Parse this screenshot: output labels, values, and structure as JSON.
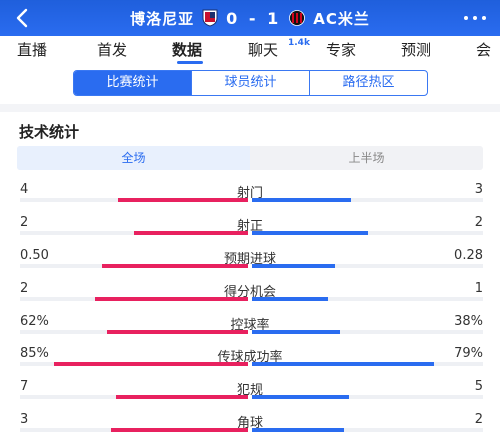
{
  "header": {
    "back_icon": "back-arrow-icon",
    "home_team": "博洛尼亚",
    "away_team": "AC米兰",
    "score": "0 - 1",
    "home_crest_icon": "bologna-crest-icon",
    "away_crest_icon": "ac-milan-crest-icon",
    "more_icon": "more-dots-icon",
    "colors": {
      "header_bg": "#2a6cf0",
      "home_bar": "#e8215f",
      "away_bar": "#2a6cf0"
    }
  },
  "tabs": [
    {
      "label": "直播"
    },
    {
      "label": "首发"
    },
    {
      "label": "数据",
      "active": true
    },
    {
      "label": "聊天",
      "badge": "1.4k"
    },
    {
      "label": "专家"
    },
    {
      "label": "预测"
    },
    {
      "label": "会"
    }
  ],
  "subnav": {
    "segments": [
      "比赛统计",
      "球员统计",
      "路径热区"
    ],
    "active_index": 0
  },
  "section": {
    "title": "技术统计",
    "periods": [
      "全场",
      "上半场"
    ],
    "active_period": 0
  },
  "stats": [
    {
      "name": "射门",
      "home": "4",
      "away": "3",
      "home_frac": 0.57,
      "away_frac": 0.43
    },
    {
      "name": "射正",
      "home": "2",
      "away": "2",
      "home_frac": 0.5,
      "away_frac": 0.5
    },
    {
      "name": "预期进球",
      "home": "0.50",
      "away": "0.28",
      "home_frac": 0.64,
      "away_frac": 0.36
    },
    {
      "name": "得分机会",
      "home": "2",
      "away": "1",
      "home_frac": 0.67,
      "away_frac": 0.33
    },
    {
      "name": "控球率",
      "home": "62%",
      "away": "38%",
      "home_frac": 0.62,
      "away_frac": 0.38
    },
    {
      "name": "传球成功率",
      "home": "85%",
      "away": "79%",
      "home_frac": 0.85,
      "away_frac": 0.79
    },
    {
      "name": "犯规",
      "home": "7",
      "away": "5",
      "home_frac": 0.58,
      "away_frac": 0.42
    },
    {
      "name": "角球",
      "home": "3",
      "away": "2",
      "home_frac": 0.6,
      "away_frac": 0.4
    }
  ]
}
